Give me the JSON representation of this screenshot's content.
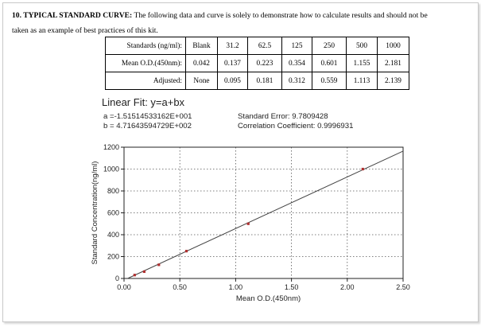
{
  "intro": {
    "heading": "10. TYPICAL STANDARD CURVE:",
    "text": " The following data and curve is solely to demonstrate how to calculate results and should not be",
    "text2": "taken as an example of best practices of this kit."
  },
  "table": {
    "rows": [
      {
        "label": "Standards (ng/ml):",
        "cells": [
          "Blank",
          "31.2",
          "62.5",
          "125",
          "250",
          "500",
          "1000"
        ]
      },
      {
        "label": "Mean O.D.(450nm):",
        "cells": [
          "0.042",
          "0.137",
          "0.223",
          "0.354",
          "0.601",
          "1.155",
          "2.181"
        ]
      },
      {
        "label": "Adjusted:",
        "cells": [
          "None",
          "0.095",
          "0.181",
          "0.312",
          "0.559",
          "1.113",
          "2.139"
        ]
      }
    ]
  },
  "fit": {
    "title": "Linear Fit: y=a+bx",
    "a": "a =-1.51514533162E+001",
    "b": "b = 4.71643594729E+002",
    "std_error": "Standard Error: 9.7809428",
    "corr": "Correlation Coefficient: 0.9996931"
  },
  "chart_data": {
    "type": "scatter",
    "xlabel": "Mean O.D.(450nm)",
    "ylabel": "Standard Concentration(ng/ml)",
    "xlim": [
      0,
      2.5
    ],
    "ylim": [
      0,
      1200
    ],
    "x_ticks": [
      "0.00",
      "0.50",
      "1.00",
      "1.50",
      "2.00",
      "2.50"
    ],
    "y_ticks": [
      "0",
      "200",
      "400",
      "600",
      "800",
      "1000",
      "1200"
    ],
    "grid": true,
    "points": [
      {
        "x": 0.095,
        "y": 31.2
      },
      {
        "x": 0.181,
        "y": 62.5
      },
      {
        "x": 0.312,
        "y": 125
      },
      {
        "x": 0.559,
        "y": 250
      },
      {
        "x": 1.113,
        "y": 500
      },
      {
        "x": 2.139,
        "y": 1000
      }
    ],
    "fit_line": {
      "a": -15.1514533162,
      "b": 471.643594729
    },
    "colors": {
      "point": "#b03030",
      "line": "#444444",
      "grid": "#555555"
    }
  }
}
